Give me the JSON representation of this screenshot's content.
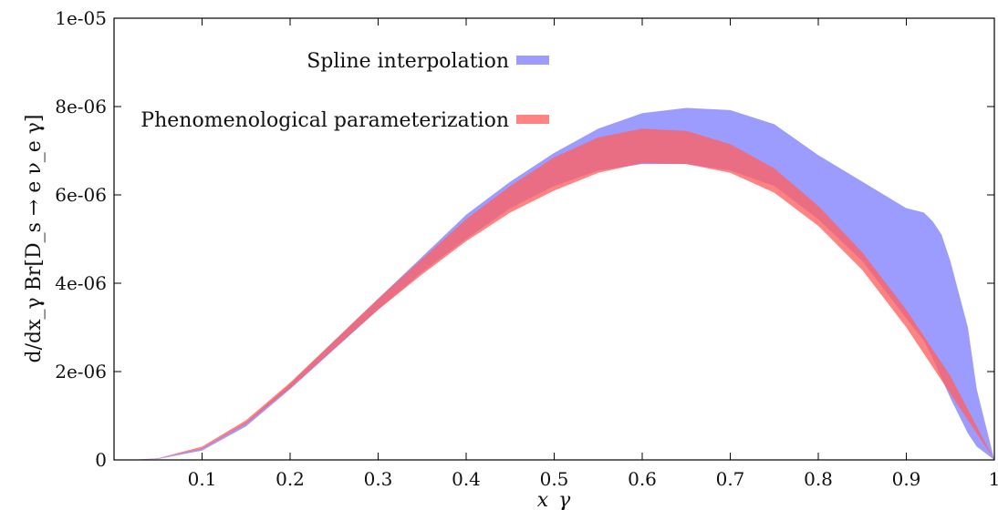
{
  "chart_data": {
    "type": "area",
    "xlabel": "x_γ",
    "ylabel": "d/dx_γ Br[D_s → e ν_e γ]",
    "xlim": [
      0.0,
      1.0
    ],
    "ylim": [
      0,
      1e-05
    ],
    "x_ticks": [
      {
        "value": 0.1,
        "label": "0.1"
      },
      {
        "value": 0.2,
        "label": "0.2"
      },
      {
        "value": 0.3,
        "label": "0.3"
      },
      {
        "value": 0.4,
        "label": "0.4"
      },
      {
        "value": 0.5,
        "label": "0.5"
      },
      {
        "value": 0.6,
        "label": "0.6"
      },
      {
        "value": 0.7,
        "label": "0.7"
      },
      {
        "value": 0.8,
        "label": "0.8"
      },
      {
        "value": 0.9,
        "label": "0.9"
      },
      {
        "value": 1.0,
        "label": "1"
      }
    ],
    "y_ticks": [
      {
        "value": 0,
        "label": "0"
      },
      {
        "value": 2e-06,
        "label": "2e-06"
      },
      {
        "value": 4e-06,
        "label": "4e-06"
      },
      {
        "value": 6e-06,
        "label": "6e-06"
      },
      {
        "value": 8e-06,
        "label": "8e-06"
      },
      {
        "value": 1e-05,
        "label": "1e-05"
      }
    ],
    "grid": false,
    "legend_position": "top-center",
    "series": [
      {
        "name": "Spline interpolation",
        "color": "#8080ff",
        "opacity": 0.78,
        "x": [
          0.02,
          0.05,
          0.1,
          0.15,
          0.2,
          0.25,
          0.3,
          0.35,
          0.4,
          0.45,
          0.5,
          0.55,
          0.6,
          0.65,
          0.7,
          0.75,
          0.8,
          0.85,
          0.9,
          0.92,
          0.93,
          0.94,
          0.95,
          0.97,
          0.98,
          1.0
        ],
        "lower": [
          0.0,
          2e-08,
          2.1e-07,
          7.6e-07,
          1.6e-06,
          2.5e-06,
          3.4e-06,
          4.25e-06,
          5e-06,
          5.7e-06,
          6.2e-06,
          6.55e-06,
          6.7e-06,
          6.7e-06,
          6.55e-06,
          6.2e-06,
          5.45e-06,
          4.5e-06,
          3.2e-06,
          2.7e-06,
          2.3e-06,
          1.85e-06,
          1.4e-06,
          6e-07,
          3e-07,
          0.0
        ],
        "upper": [
          0.0,
          3e-08,
          2.6e-07,
          8.5e-07,
          1.72e-06,
          2.7e-06,
          3.65e-06,
          4.6e-06,
          5.55e-06,
          6.3e-06,
          6.95e-06,
          7.5e-06,
          7.85e-06,
          7.97e-06,
          7.92e-06,
          7.6e-06,
          6.9e-06,
          6.3e-06,
          5.7e-06,
          5.6e-06,
          5.4e-06,
          5.1e-06,
          4.5e-06,
          3e-06,
          1.6e-06,
          0.0
        ]
      },
      {
        "name": "Phenomenological parameterization",
        "color": "#ff6060",
        "opacity": 0.78,
        "x": [
          0.02,
          0.05,
          0.1,
          0.15,
          0.2,
          0.25,
          0.3,
          0.35,
          0.4,
          0.45,
          0.5,
          0.55,
          0.6,
          0.65,
          0.7,
          0.75,
          0.8,
          0.85,
          0.9,
          0.95,
          1.0
        ],
        "lower": [
          0.0,
          3e-08,
          2.5e-07,
          8.2e-07,
          1.62e-06,
          2.52e-06,
          3.4e-06,
          4.2e-06,
          4.95e-06,
          5.6e-06,
          6.1e-06,
          6.5e-06,
          6.72e-06,
          6.7e-06,
          6.5e-06,
          6.05e-06,
          5.3e-06,
          4.3e-06,
          3e-06,
          1.5e-06,
          0.0
        ],
        "upper": [
          0.0,
          4e-08,
          3e-07,
          9e-07,
          1.75e-06,
          2.7e-06,
          3.65e-06,
          4.55e-06,
          5.45e-06,
          6.2e-06,
          6.85e-06,
          7.3e-06,
          7.5e-06,
          7.45e-06,
          7.15e-06,
          6.6e-06,
          5.75e-06,
          4.7e-06,
          3.4e-06,
          1.9e-06,
          0.0
        ]
      }
    ]
  }
}
